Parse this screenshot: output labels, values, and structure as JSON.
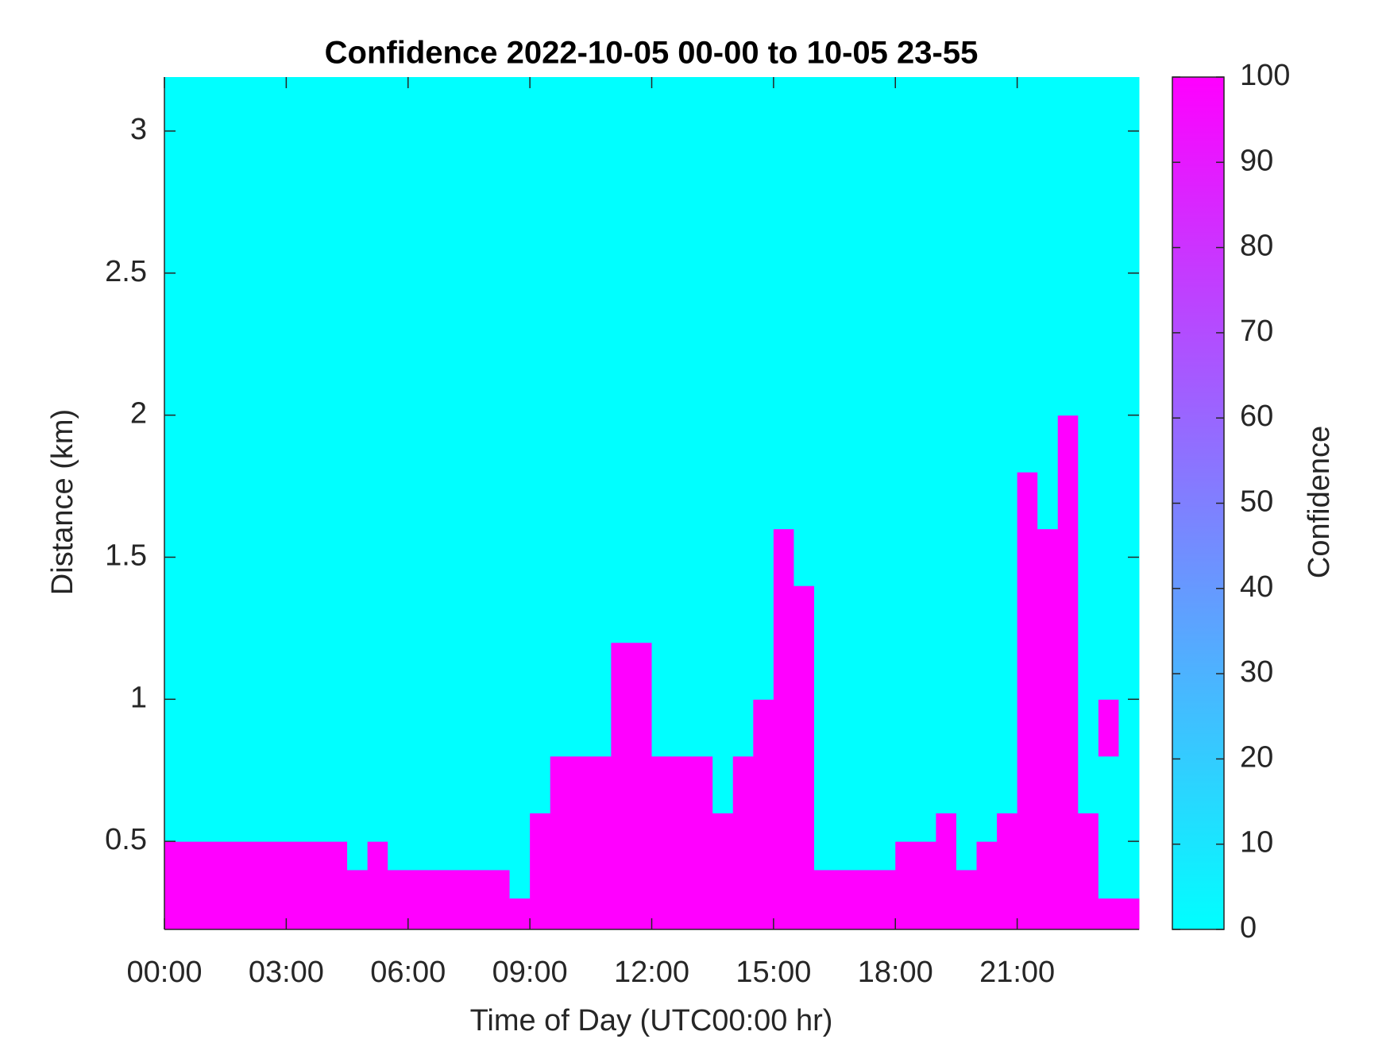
{
  "chart_data": {
    "type": "heatmap",
    "title": "Confidence 2022-10-05 00-00 to 10-05 23-55",
    "xlabel": "Time of Day (UTC00:00 hr)",
    "ylabel": "Distance (km)",
    "colorbar_label": "Confidence",
    "colormap": [
      "#00ffff",
      "#ff00ff"
    ],
    "xbins": [
      0,
      0.5,
      1,
      1.5,
      2,
      2.5,
      3,
      3.5,
      4,
      4.5,
      5,
      5.5,
      6,
      6.5,
      7,
      7.5,
      8,
      8.5,
      9,
      9.5,
      10,
      10.5,
      11,
      11.5,
      12,
      12.5,
      13,
      13.5,
      14,
      14.5,
      15,
      15.5,
      16,
      16.5,
      17,
      17.5,
      18,
      18.5,
      19,
      19.5,
      20,
      20.5,
      21,
      21.5,
      22,
      22.5,
      23,
      23.5,
      24
    ],
    "ybins": [
      0.19,
      0.3,
      0.4,
      0.5,
      0.6,
      0.8,
      1.0,
      1.2,
      1.4,
      1.6,
      1.8,
      2.0,
      2.4,
      2.8,
      3.19
    ],
    "z": [
      [
        100,
        100,
        100,
        100,
        100,
        100,
        100,
        100,
        100,
        100,
        100,
        100,
        100,
        100,
        100,
        100,
        100,
        100,
        100,
        100,
        100,
        100,
        100,
        100,
        100,
        100,
        100,
        100,
        100,
        100,
        100,
        100,
        100,
        100,
        100,
        100,
        100,
        100,
        100,
        100,
        100,
        100,
        100,
        100,
        100,
        100,
        100,
        100
      ],
      [
        100,
        100,
        100,
        100,
        100,
        100,
        100,
        100,
        100,
        100,
        100,
        100,
        100,
        100,
        100,
        100,
        100,
        0,
        100,
        100,
        100,
        100,
        100,
        100,
        100,
        100,
        100,
        100,
        100,
        100,
        100,
        100,
        100,
        100,
        100,
        100,
        100,
        100,
        100,
        100,
        100,
        100,
        100,
        100,
        100,
        100,
        0,
        0
      ],
      [
        100,
        100,
        100,
        100,
        100,
        100,
        100,
        100,
        100,
        0,
        100,
        0,
        0,
        0,
        0,
        0,
        0,
        0,
        100,
        100,
        100,
        100,
        100,
        100,
        100,
        100,
        100,
        100,
        100,
        100,
        100,
        100,
        0,
        0,
        0,
        0,
        100,
        100,
        100,
        0,
        100,
        100,
        100,
        100,
        100,
        100,
        0,
        0
      ],
      [
        0,
        0,
        0,
        0,
        0,
        0,
        0,
        0,
        0,
        0,
        0,
        0,
        0,
        0,
        0,
        0,
        0,
        0,
        100,
        100,
        100,
        100,
        100,
        100,
        100,
        100,
        100,
        100,
        100,
        100,
        100,
        100,
        0,
        0,
        0,
        0,
        0,
        0,
        100,
        0,
        0,
        100,
        100,
        100,
        100,
        100,
        0,
        0
      ],
      [
        0,
        0,
        0,
        0,
        0,
        0,
        0,
        0,
        0,
        0,
        0,
        0,
        0,
        0,
        0,
        0,
        0,
        0,
        0,
        100,
        100,
        100,
        100,
        100,
        100,
        100,
        100,
        0,
        100,
        100,
        100,
        100,
        0,
        0,
        0,
        0,
        0,
        0,
        0,
        0,
        0,
        0,
        100,
        100,
        100,
        0,
        0,
        0
      ],
      [
        0,
        0,
        0,
        0,
        0,
        0,
        0,
        0,
        0,
        0,
        0,
        0,
        0,
        0,
        0,
        0,
        0,
        0,
        0,
        0,
        0,
        0,
        100,
        100,
        0,
        0,
        0,
        0,
        0,
        100,
        100,
        100,
        0,
        0,
        0,
        0,
        0,
        0,
        0,
        0,
        0,
        0,
        100,
        100,
        100,
        0,
        100,
        0
      ],
      [
        0,
        0,
        0,
        0,
        0,
        0,
        0,
        0,
        0,
        0,
        0,
        0,
        0,
        0,
        0,
        0,
        0,
        0,
        0,
        0,
        0,
        0,
        100,
        100,
        0,
        0,
        0,
        0,
        0,
        0,
        100,
        100,
        0,
        0,
        0,
        0,
        0,
        0,
        0,
        0,
        0,
        0,
        100,
        100,
        100,
        0,
        0,
        0
      ],
      [
        0,
        0,
        0,
        0,
        0,
        0,
        0,
        0,
        0,
        0,
        0,
        0,
        0,
        0,
        0,
        0,
        0,
        0,
        0,
        0,
        0,
        0,
        0,
        0,
        0,
        0,
        0,
        0,
        0,
        0,
        100,
        100,
        0,
        0,
        0,
        0,
        0,
        0,
        0,
        0,
        0,
        0,
        100,
        100,
        100,
        0,
        0,
        0
      ],
      [
        0,
        0,
        0,
        0,
        0,
        0,
        0,
        0,
        0,
        0,
        0,
        0,
        0,
        0,
        0,
        0,
        0,
        0,
        0,
        0,
        0,
        0,
        0,
        0,
        0,
        0,
        0,
        0,
        0,
        0,
        100,
        0,
        0,
        0,
        0,
        0,
        0,
        0,
        0,
        0,
        0,
        0,
        100,
        100,
        100,
        0,
        0,
        0
      ],
      [
        0,
        0,
        0,
        0,
        0,
        0,
        0,
        0,
        0,
        0,
        0,
        0,
        0,
        0,
        0,
        0,
        0,
        0,
        0,
        0,
        0,
        0,
        0,
        0,
        0,
        0,
        0,
        0,
        0,
        0,
        0,
        0,
        0,
        0,
        0,
        0,
        0,
        0,
        0,
        0,
        0,
        0,
        100,
        0,
        100,
        0,
        0,
        0
      ],
      [
        0,
        0,
        0,
        0,
        0,
        0,
        0,
        0,
        0,
        0,
        0,
        0,
        0,
        0,
        0,
        0,
        0,
        0,
        0,
        0,
        0,
        0,
        0,
        0,
        0,
        0,
        0,
        0,
        0,
        0,
        0,
        0,
        0,
        0,
        0,
        0,
        0,
        0,
        0,
        0,
        0,
        0,
        0,
        0,
        100,
        0,
        0,
        0
      ],
      [
        0,
        0,
        0,
        0,
        0,
        0,
        0,
        0,
        0,
        0,
        0,
        0,
        0,
        0,
        0,
        0,
        0,
        0,
        0,
        0,
        0,
        0,
        0,
        0,
        0,
        0,
        0,
        0,
        0,
        0,
        0,
        0,
        0,
        0,
        0,
        0,
        0,
        0,
        0,
        0,
        0,
        0,
        0,
        0,
        0,
        0,
        0,
        0
      ],
      [
        0,
        0,
        0,
        0,
        0,
        0,
        0,
        0,
        0,
        0,
        0,
        0,
        0,
        0,
        0,
        0,
        0,
        0,
        0,
        0,
        0,
        0,
        0,
        0,
        0,
        0,
        0,
        0,
        0,
        0,
        0,
        0,
        0,
        0,
        0,
        0,
        0,
        0,
        0,
        0,
        0,
        0,
        0,
        0,
        0,
        0,
        0,
        0
      ],
      [
        0,
        0,
        0,
        0,
        0,
        0,
        0,
        0,
        0,
        0,
        0,
        0,
        0,
        0,
        0,
        0,
        0,
        0,
        0,
        0,
        0,
        0,
        0,
        0,
        0,
        0,
        0,
        0,
        0,
        0,
        0,
        0,
        0,
        0,
        0,
        0,
        0,
        0,
        0,
        0,
        0,
        0,
        0,
        0,
        0,
        0,
        0,
        0
      ]
    ],
    "xlim": [
      0,
      24
    ],
    "xticks": [
      {
        "value": 0,
        "label": "00:00"
      },
      {
        "value": 3,
        "label": "03:00"
      },
      {
        "value": 6,
        "label": "06:00"
      },
      {
        "value": 9,
        "label": "09:00"
      },
      {
        "value": 12,
        "label": "12:00"
      },
      {
        "value": 15,
        "label": "15:00"
      },
      {
        "value": 18,
        "label": "18:00"
      },
      {
        "value": 21,
        "label": "21:00"
      }
    ],
    "ylim": [
      0.19,
      3.19
    ],
    "yticks": [
      0.5,
      1,
      1.5,
      2,
      2.5,
      3
    ],
    "clim": [
      0,
      100
    ],
    "cticks": [
      0,
      10,
      20,
      30,
      40,
      50,
      60,
      70,
      80,
      90,
      100
    ]
  }
}
